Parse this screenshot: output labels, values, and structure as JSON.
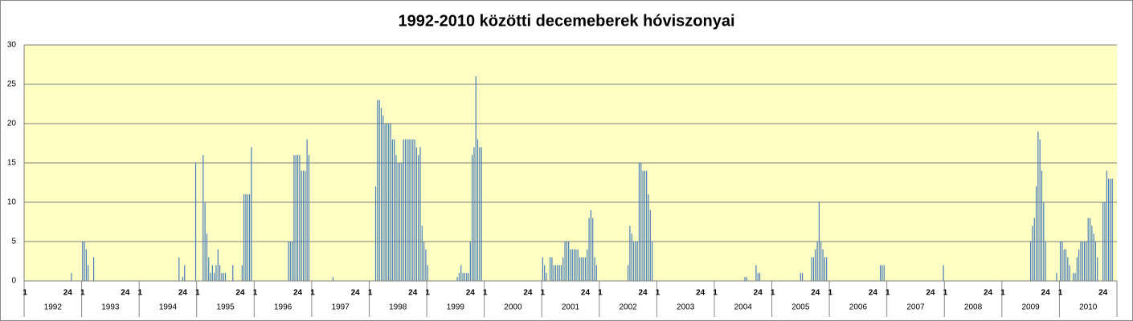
{
  "chart_data": {
    "type": "bar",
    "title": "1992-2010 közötti decemeberek hóviszonyai",
    "color": "#4a7ebb",
    "grid": true,
    "ylim": [
      0,
      30
    ],
    "yticks": [
      0,
      5,
      10,
      15,
      20,
      25,
      30
    ],
    "day_labels": [
      "1",
      null,
      null,
      null,
      null,
      null,
      null,
      null,
      null,
      null,
      null,
      null,
      null,
      null,
      null,
      null,
      null,
      null,
      null,
      null,
      null,
      null,
      null,
      "24",
      null,
      null,
      null,
      null,
      null,
      null,
      null
    ],
    "years": [
      "1992",
      "1993",
      "1994",
      "1995",
      "1996",
      "1997",
      "1998",
      "1999",
      "2000",
      "2001",
      "2002",
      "2003",
      "2004",
      "2005",
      "2006",
      "2007",
      "2008",
      "2009",
      "2010"
    ],
    "values": [
      [
        0,
        0,
        0,
        0,
        0,
        0,
        0,
        0,
        0,
        0,
        0,
        0,
        0,
        0,
        0,
        0,
        0,
        0,
        0,
        0,
        0,
        0,
        0,
        0,
        0,
        1,
        0,
        0,
        0,
        0,
        0
      ],
      [
        5,
        5,
        4,
        2,
        0,
        0,
        3,
        0,
        0,
        0,
        0,
        0,
        0,
        0,
        0,
        0,
        0,
        0,
        0,
        0,
        0,
        0,
        0,
        0,
        0,
        0,
        0,
        0,
        0,
        0,
        0
      ],
      [
        0,
        0,
        0,
        0,
        0,
        0,
        0,
        0,
        0,
        0,
        0,
        0,
        0,
        0,
        0,
        0,
        0,
        0,
        0,
        0,
        0,
        3,
        0,
        0.5,
        2,
        0,
        0,
        0,
        0,
        0,
        15
      ],
      [
        0,
        0,
        0,
        16,
        10,
        6,
        3,
        1,
        2,
        1,
        2,
        4,
        2,
        1,
        1,
        1,
        0,
        0,
        0,
        2,
        0,
        0,
        0,
        0,
        2,
        11,
        11,
        11,
        11,
        17,
        0
      ],
      [
        0,
        0,
        0,
        0,
        0,
        0,
        0,
        0,
        0,
        0,
        0,
        0,
        0,
        0,
        0,
        0,
        0,
        0,
        5,
        5,
        5,
        16,
        16,
        16,
        16,
        14,
        14,
        14,
        18,
        16,
        0
      ],
      [
        0,
        0,
        0,
        0,
        0,
        0,
        0,
        0,
        0,
        0,
        0,
        0.5,
        0,
        0,
        0,
        0,
        0,
        0,
        0,
        0,
        0,
        0,
        0,
        0,
        0,
        0,
        0,
        0,
        0,
        0,
        0
      ],
      [
        0,
        0,
        0,
        12,
        23,
        23,
        22,
        21,
        20,
        20,
        20,
        20,
        18,
        18,
        16,
        15,
        15,
        15,
        18,
        18,
        18,
        18,
        18,
        18,
        18,
        17,
        16,
        17,
        7,
        5,
        4
      ],
      [
        2,
        0,
        0,
        0,
        0,
        0,
        0,
        0,
        0,
        0,
        0,
        0,
        0,
        0,
        0,
        0,
        0.5,
        1,
        2,
        1,
        1,
        1,
        1,
        5,
        16,
        17,
        26,
        18,
        17,
        17,
        0
      ],
      [
        0,
        0,
        0,
        0,
        0,
        0,
        0,
        0,
        0,
        0,
        0,
        0,
        0,
        0,
        0,
        0,
        0,
        0,
        0,
        0,
        0,
        0,
        0,
        0,
        0,
        0,
        0,
        0,
        0,
        0,
        0
      ],
      [
        3,
        2,
        1,
        0,
        3,
        3,
        2,
        2,
        2,
        2,
        2,
        3,
        5,
        5,
        5,
        4,
        4,
        4,
        4,
        4,
        3,
        3,
        3,
        3,
        4,
        8,
        9,
        8,
        3,
        2,
        0
      ],
      [
        0,
        0,
        0,
        0,
        0,
        0,
        0,
        0,
        0,
        0,
        0,
        0,
        0,
        0,
        0,
        2,
        7,
        6,
        5,
        5,
        5,
        15,
        15,
        14,
        14,
        14,
        11,
        9,
        5,
        0,
        0
      ],
      [
        0,
        0,
        0,
        0,
        0,
        0,
        0,
        0,
        0,
        0,
        0,
        0,
        0,
        0,
        0,
        0,
        0,
        0,
        0,
        0,
        0,
        0,
        0,
        0,
        0,
        0,
        0,
        0,
        0,
        0,
        0
      ],
      [
        0,
        0,
        0,
        0,
        0,
        0,
        0,
        0,
        0,
        0,
        0,
        0,
        0,
        0,
        0,
        0,
        0.5,
        0.5,
        0,
        0,
        0,
        0,
        2,
        1,
        1,
        0,
        0,
        0,
        0,
        0,
        0
      ],
      [
        0,
        0,
        0,
        0,
        0,
        0,
        0,
        0,
        0,
        0,
        0,
        0,
        0,
        0,
        0,
        1,
        1,
        0,
        0,
        0,
        0,
        3,
        3,
        4,
        5,
        10,
        5,
        4,
        3,
        3,
        0
      ],
      [
        0,
        0,
        0,
        0,
        0,
        0,
        0,
        0,
        0,
        0,
        0,
        0,
        0,
        0,
        0,
        0,
        0,
        0,
        0,
        0,
        0,
        0,
        0,
        0,
        0,
        0,
        0,
        2,
        2,
        2,
        0
      ],
      [
        0,
        0,
        0,
        0,
        0,
        0,
        0,
        0,
        0,
        0,
        0,
        0,
        0,
        0,
        0,
        0,
        0,
        0,
        0,
        0,
        0,
        0,
        0,
        0,
        0,
        0,
        0,
        0,
        0,
        0,
        2
      ],
      [
        0,
        0,
        0,
        0,
        0,
        0,
        0,
        0,
        0,
        0,
        0,
        0,
        0,
        0,
        0,
        0,
        0,
        0,
        0,
        0,
        0,
        0,
        0,
        0,
        0,
        0,
        0,
        0,
        0,
        0,
        0
      ],
      [
        0,
        0,
        0,
        0,
        0,
        0,
        0,
        0,
        0,
        0,
        0,
        0,
        0,
        0,
        0,
        5,
        7,
        8,
        12,
        19,
        18,
        14,
        10,
        5,
        0,
        0,
        0,
        0,
        0,
        1,
        0
      ],
      [
        5,
        5,
        4,
        4,
        3,
        2,
        0,
        1,
        1,
        3,
        4,
        5,
        5,
        5,
        5,
        8,
        8,
        7,
        6,
        5,
        3,
        0,
        0,
        10,
        10,
        14,
        13,
        13,
        13,
        0,
        0
      ]
    ]
  }
}
